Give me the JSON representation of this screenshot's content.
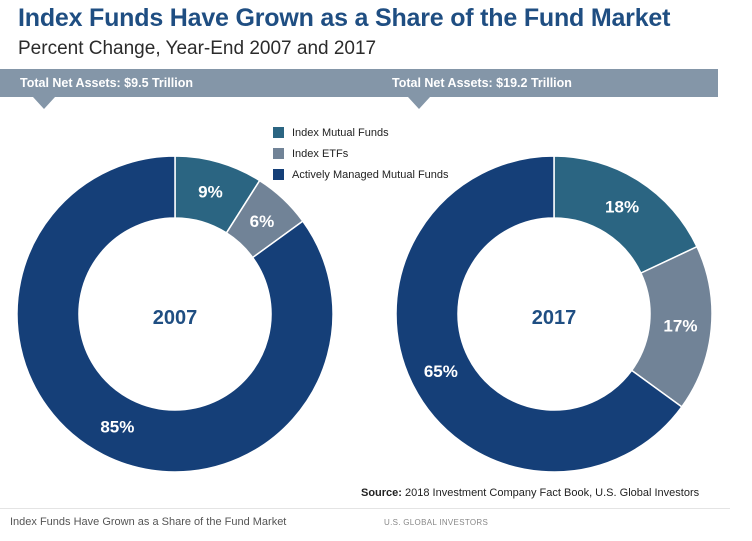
{
  "title": "Index Funds Have Grown as a Share of the Fund Market",
  "subtitle": "Percent Change, Year-End 2007 and 2017",
  "banners": [
    "Total Net Assets: $9.5 Trillion",
    "Total Net Assets: $19.2 Trillion"
  ],
  "colors": {
    "index_mutual_funds": "#2b6582",
    "index_etfs": "#718397",
    "actively_managed": "#153f78",
    "banner": "#8496a8",
    "title": "#1f4e82"
  },
  "chart_data": [
    {
      "type": "pie",
      "donut": true,
      "center_label": "2007",
      "legend": [
        "Index Mutual Funds",
        "Index ETFs",
        "Actively Managed Mutual Funds"
      ],
      "slices": [
        {
          "name": "Index Mutual Funds",
          "value": 9,
          "label": "9%"
        },
        {
          "name": "Index ETFs",
          "value": 6,
          "label": "6%"
        },
        {
          "name": "Actively Managed Mutual Funds",
          "value": 85,
          "label": "85%"
        }
      ]
    },
    {
      "type": "pie",
      "donut": true,
      "center_label": "2017",
      "legend": [
        "Index Mutual Funds",
        "Index ETFs",
        "Actively Managed Mutual Funds"
      ],
      "slices": [
        {
          "name": "Index Mutual Funds",
          "value": 18,
          "label": "18%"
        },
        {
          "name": "Index ETFs",
          "value": 17,
          "label": "17%"
        },
        {
          "name": "Actively Managed Mutual Funds",
          "value": 65,
          "label": "65%"
        }
      ]
    }
  ],
  "source": {
    "label": "Source:",
    "text": "2018 Investment Company Fact Book, U.S. Global Investors"
  },
  "caption": "Index Funds Have Grown as a Share of the Fund Market",
  "credit": "U.S. GLOBAL INVESTORS"
}
